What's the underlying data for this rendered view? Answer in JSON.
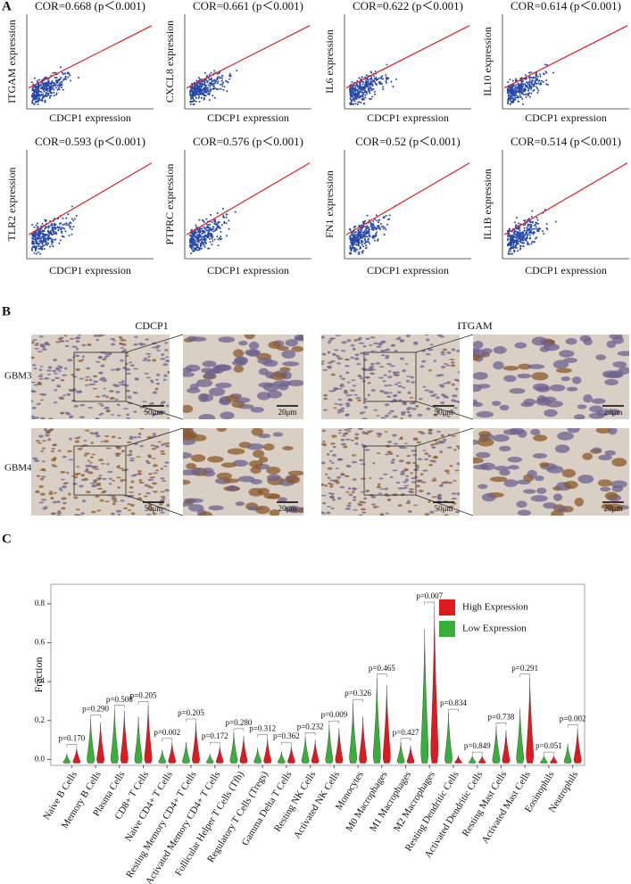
{
  "panel_a": {
    "label": "A",
    "plots": [
      {
        "title": "COR=0.668 (p＜0.001)",
        "x_label": "CDCP1 expression",
        "y_label": "ITGAM expression"
      },
      {
        "title": "COR=0.661 (p＜0.001)",
        "x_label": "CDCP1 expression",
        "y_label": "CXCL8 expression"
      },
      {
        "title": "COR=0.622 (p＜0.001)",
        "x_label": "CDCP1 expression",
        "y_label": "IL6 expression"
      },
      {
        "title": "COR=0.614 (p＜0.001)",
        "x_label": "CDCP1 expression",
        "y_label": "IL10 expression"
      },
      {
        "title": "COR=0.593 (p＜0.001)",
        "x_label": "CDCP1 expression",
        "y_label": "TLR2 expression"
      },
      {
        "title": "COR=0.576 (p＜0.001)",
        "x_label": "CDCP1 expression",
        "y_label": "PTPRC expression"
      },
      {
        "title": "COR=0.52 (p＜0.001)",
        "x_label": "CDCP1 expression",
        "y_label": "FN1 expression"
      },
      {
        "title": "COR=0.514 (p＜0.001)",
        "x_label": "CDCP1 expression",
        "y_label": "IL1B expression"
      }
    ]
  },
  "panel_b": {
    "label": "B",
    "columns": [
      "CDCP1",
      "ITGAM"
    ],
    "rows": [
      "GBM3",
      "GBM4"
    ],
    "scale_low": "50μm",
    "scale_high": "20μm"
  },
  "chart_data": {
    "type": "violin",
    "label": "C",
    "y_label": "Fraction",
    "categories": [
      "Naive B Cells",
      "Memory B Cells",
      "Plasma Cells",
      "CD8+ T Cells",
      "Naive CD4+ T Cells",
      "Resting Memory CD4+ T Cells",
      "Activated Memory CD4+ T Cells",
      "Follicular Helper T Cells (Tfh)",
      "Regulatory T Cells (Tregs)",
      "Gamma Delta T Cells",
      "Resting NK Cells",
      "Activated NK Cells",
      "Monocytes",
      "M0 Macrophages",
      "M1 Macrophages",
      "M2 Macrophages",
      "Resting Dendritic Cells",
      "Activated Dendritic Cells",
      "Resting Mast Cells",
      "Activated Mast Cells",
      "Eosinophils",
      "Neutrophils"
    ],
    "p_values": [
      "p=0.170",
      "p=0.290",
      "p=0.508",
      "p=0.205",
      "p=0.002",
      "p=0.205",
      "p=0.172",
      "p=0.280",
      "p=0.312",
      "p=0.362",
      "p=0.232",
      "p=0.009",
      "p=0.326",
      "p=0.465",
      "p=0.427",
      "p=0.007",
      "p=0.834",
      "p=0.849",
      "p=0.738",
      "p=0.291",
      "p=0.051",
      "p=0.002"
    ],
    "series": [
      {
        "name": "High Expression",
        "color": "#e0191f",
        "values": [
          0.06,
          0.19,
          0.25,
          0.28,
          0.09,
          0.19,
          0.07,
          0.12,
          0.11,
          0.07,
          0.1,
          0.16,
          0.22,
          0.38,
          0.07,
          0.79,
          0.02,
          0.02,
          0.15,
          0.42,
          0.02,
          0.16
        ]
      },
      {
        "name": "Low Expression",
        "color": "#3aae3a",
        "values": [
          0.03,
          0.21,
          0.26,
          0.22,
          0.05,
          0.09,
          0.03,
          0.14,
          0.06,
          0.04,
          0.12,
          0.18,
          0.29,
          0.42,
          0.09,
          0.67,
          0.24,
          0.02,
          0.17,
          0.26,
          0.02,
          0.08
        ]
      }
    ],
    "ylim": [
      -0.03,
      0.9
    ],
    "yticks": [
      {
        "value": 0,
        "label": "0.0"
      },
      0.2,
      0.4,
      0.6,
      0.8
    ]
  }
}
